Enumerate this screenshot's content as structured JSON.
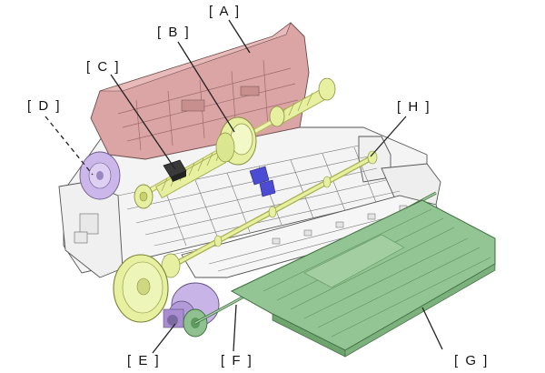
{
  "diagram": {
    "labels": {
      "a": "[ A ]",
      "b": "[ B ]",
      "c": "[ C ]",
      "d": "[ D ]",
      "e": "[ E ]",
      "f": "[ F ]",
      "g": "[ G ]",
      "h": "[ H ]"
    },
    "colors": {
      "cover_pink": "#d9a3a3",
      "roller_yellow": "#e6f0a0",
      "gear_purple": "#c8b4e6",
      "tray_green": "#8fc08f",
      "block_blue": "#4a4ad0",
      "frame_gray": "#f2f2f2"
    }
  }
}
